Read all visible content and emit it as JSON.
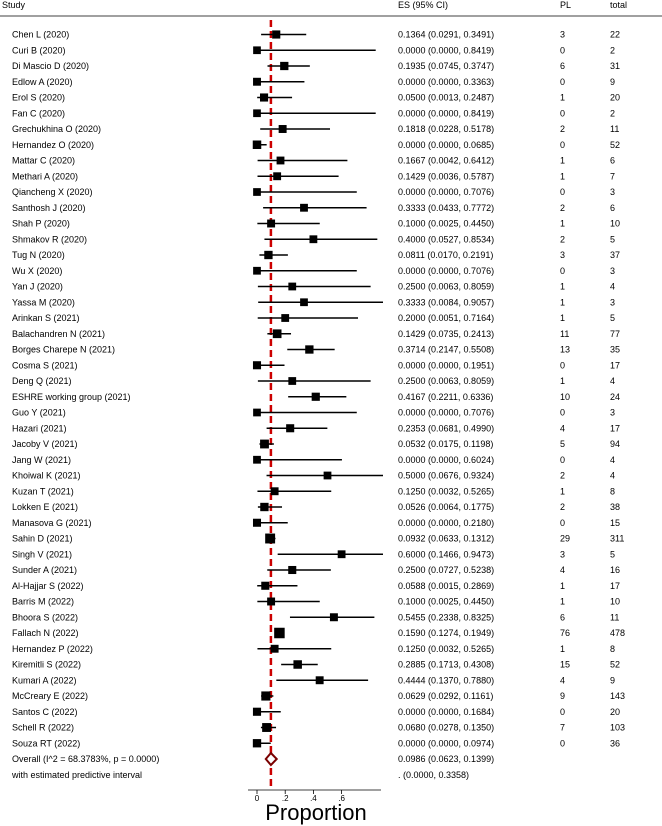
{
  "chart_data": {
    "type": "forest",
    "headers": {
      "study": "Study",
      "es": "ES (95% CI)",
      "pl": "PL",
      "total": "total"
    },
    "xlabel": "Proportion",
    "xlim": [
      -0.02,
      0.72
    ],
    "ticks": [
      "0",
      ".2",
      ".4",
      ".6"
    ],
    "tick_values": [
      0,
      0.2,
      0.4,
      0.6
    ],
    "reference_line": 0.0986,
    "colors": {
      "marker": "#000000",
      "line": "#000000",
      "reference": "#cc0000",
      "overall_diamond": "#7a0000"
    },
    "studies": [
      {
        "study": "Chen L (2020)",
        "es": 0.1364,
        "lo": 0.0291,
        "hi": 0.3491,
        "es_ci": "0.1364 (0.0291, 0.3491)",
        "pl": "3",
        "total": "22"
      },
      {
        "study": "Curi B (2020)",
        "es": 0.0,
        "lo": 0.0,
        "hi": 0.8419,
        "es_ci": "0.0000 (0.0000, 0.8419)",
        "pl": "0",
        "total": "2"
      },
      {
        "study": "Di Mascio D (2020)",
        "es": 0.1935,
        "lo": 0.0745,
        "hi": 0.3747,
        "es_ci": "0.1935 (0.0745, 0.3747)",
        "pl": "6",
        "total": "31"
      },
      {
        "study": "Edlow A (2020)",
        "es": 0.0,
        "lo": 0.0,
        "hi": 0.3363,
        "es_ci": "0.0000 (0.0000, 0.3363)",
        "pl": "0",
        "total": "9"
      },
      {
        "study": "Erol S (2020)",
        "es": 0.05,
        "lo": 0.0013,
        "hi": 0.2487,
        "es_ci": "0.0500 (0.0013, 0.2487)",
        "pl": "1",
        "total": "20"
      },
      {
        "study": "Fan C (2020)",
        "es": 0.0,
        "lo": 0.0,
        "hi": 0.8419,
        "es_ci": "0.0000 (0.0000, 0.8419)",
        "pl": "0",
        "total": "2"
      },
      {
        "study": "Grechukhina O (2020)",
        "es": 0.1818,
        "lo": 0.0228,
        "hi": 0.5178,
        "es_ci": "0.1818 (0.0228, 0.5178)",
        "pl": "2",
        "total": "11"
      },
      {
        "study": "Hernandez O (2020)",
        "es": 0.0,
        "lo": 0.0,
        "hi": 0.0685,
        "es_ci": "0.0000 (0.0000, 0.0685)",
        "pl": "0",
        "total": "52"
      },
      {
        "study": "Mattar C (2020)",
        "es": 0.1667,
        "lo": 0.0042,
        "hi": 0.6412,
        "es_ci": "0.1667 (0.0042, 0.6412)",
        "pl": "1",
        "total": "6"
      },
      {
        "study": "Methari A (2020)",
        "es": 0.1429,
        "lo": 0.0036,
        "hi": 0.5787,
        "es_ci": "0.1429 (0.0036, 0.5787)",
        "pl": "1",
        "total": "7"
      },
      {
        "study": "Qiancheng X (2020)",
        "es": 0.0,
        "lo": 0.0,
        "hi": 0.7076,
        "es_ci": "0.0000 (0.0000, 0.7076)",
        "pl": "0",
        "total": "3"
      },
      {
        "study": "Santhosh J (2020)",
        "es": 0.3333,
        "lo": 0.0433,
        "hi": 0.7772,
        "es_ci": "0.3333 (0.0433, 0.7772)",
        "pl": "2",
        "total": "6"
      },
      {
        "study": "Shah P (2020)",
        "es": 0.1,
        "lo": 0.0025,
        "hi": 0.445,
        "es_ci": "0.1000 (0.0025, 0.4450)",
        "pl": "1",
        "total": "10"
      },
      {
        "study": "Shmakov R (2020)",
        "es": 0.4,
        "lo": 0.0527,
        "hi": 0.8534,
        "es_ci": "0.4000 (0.0527, 0.8534)",
        "pl": "2",
        "total": "5"
      },
      {
        "study": "Tug N (2020)",
        "es": 0.0811,
        "lo": 0.017,
        "hi": 0.2191,
        "es_ci": "0.0811 (0.0170, 0.2191)",
        "pl": "3",
        "total": "37"
      },
      {
        "study": "Wu X (2020)",
        "es": 0.0,
        "lo": 0.0,
        "hi": 0.7076,
        "es_ci": "0.0000 (0.0000, 0.7076)",
        "pl": "0",
        "total": "3"
      },
      {
        "study": "Yan J (2020)",
        "es": 0.25,
        "lo": 0.0063,
        "hi": 0.8059,
        "es_ci": "0.2500 (0.0063, 0.8059)",
        "pl": "1",
        "total": "4"
      },
      {
        "study": "Yassa M (2020)",
        "es": 0.3333,
        "lo": 0.0084,
        "hi": 0.9057,
        "es_ci": "0.3333 (0.0084, 0.9057)",
        "pl": "1",
        "total": "3"
      },
      {
        "study": "Arinkan S (2021)",
        "es": 0.2,
        "lo": 0.0051,
        "hi": 0.7164,
        "es_ci": "0.2000 (0.0051, 0.7164)",
        "pl": "1",
        "total": "5"
      },
      {
        "study": "Balachandren N (2021)",
        "es": 0.1429,
        "lo": 0.0735,
        "hi": 0.2413,
        "es_ci": "0.1429 (0.0735, 0.2413)",
        "pl": "11",
        "total": "77"
      },
      {
        "study": "Borges Charepe N (2021)",
        "es": 0.3714,
        "lo": 0.2147,
        "hi": 0.5508,
        "es_ci": "0.3714 (0.2147, 0.5508)",
        "pl": "13",
        "total": "35"
      },
      {
        "study": "Cosma S (2021)",
        "es": 0.0,
        "lo": 0.0,
        "hi": 0.1951,
        "es_ci": "0.0000 (0.0000, 0.1951)",
        "pl": "0",
        "total": "17"
      },
      {
        "study": "Deng Q (2021)",
        "es": 0.25,
        "lo": 0.0063,
        "hi": 0.8059,
        "es_ci": "0.2500 (0.0063, 0.8059)",
        "pl": "1",
        "total": "4"
      },
      {
        "study": "ESHRE working group (2021)",
        "es": 0.4167,
        "lo": 0.2211,
        "hi": 0.6336,
        "es_ci": "0.4167 (0.2211, 0.6336)",
        "pl": "10",
        "total": "24"
      },
      {
        "study": "Guo Y (2021)",
        "es": 0.0,
        "lo": 0.0,
        "hi": 0.7076,
        "es_ci": "0.0000 (0.0000, 0.7076)",
        "pl": "0",
        "total": "3"
      },
      {
        "study": "Hazari  (2021)",
        "es": 0.2353,
        "lo": 0.0681,
        "hi": 0.499,
        "es_ci": "0.2353 (0.0681, 0.4990)",
        "pl": "4",
        "total": "17"
      },
      {
        "study": "Jacoby  V (2021)",
        "es": 0.0532,
        "lo": 0.0175,
        "hi": 0.1198,
        "es_ci": "0.0532 (0.0175, 0.1198)",
        "pl": "5",
        "total": "94"
      },
      {
        "study": "Jang W (2021)",
        "es": 0.0,
        "lo": 0.0,
        "hi": 0.6024,
        "es_ci": "0.0000 (0.0000, 0.6024)",
        "pl": "0",
        "total": "4"
      },
      {
        "study": "Khoiwal K (2021)",
        "es": 0.5,
        "lo": 0.0676,
        "hi": 0.9324,
        "es_ci": "0.5000 (0.0676, 0.9324)",
        "pl": "2",
        "total": "4"
      },
      {
        "study": "Kuzan T (2021)",
        "es": 0.125,
        "lo": 0.0032,
        "hi": 0.5265,
        "es_ci": "0.1250 (0.0032, 0.5265)",
        "pl": "1",
        "total": "8"
      },
      {
        "study": "Lokken E (2021)",
        "es": 0.0526,
        "lo": 0.0064,
        "hi": 0.1775,
        "es_ci": "0.0526 (0.0064, 0.1775)",
        "pl": "2",
        "total": "38"
      },
      {
        "study": "Manasova G (2021)",
        "es": 0.0,
        "lo": 0.0,
        "hi": 0.218,
        "es_ci": "0.0000 (0.0000, 0.2180)",
        "pl": "0",
        "total": "15"
      },
      {
        "study": "Sahin D (2021)",
        "es": 0.0932,
        "lo": 0.0633,
        "hi": 0.1312,
        "es_ci": "0.0932 (0.0633, 0.1312)",
        "pl": "29",
        "total": "311"
      },
      {
        "study": "Singh V (2021)",
        "es": 0.6,
        "lo": 0.1466,
        "hi": 0.9473,
        "es_ci": "0.6000 (0.1466, 0.9473)",
        "pl": "3",
        "total": "5"
      },
      {
        "study": "Sunder A (2021)",
        "es": 0.25,
        "lo": 0.0727,
        "hi": 0.5238,
        "es_ci": "0.2500 (0.0727, 0.5238)",
        "pl": "4",
        "total": "16"
      },
      {
        "study": "Al-Hajjar S (2022)",
        "es": 0.0588,
        "lo": 0.0015,
        "hi": 0.2869,
        "es_ci": "0.0588 (0.0015, 0.2869)",
        "pl": "1",
        "total": "17"
      },
      {
        "study": "Barris M (2022)",
        "es": 0.1,
        "lo": 0.0025,
        "hi": 0.445,
        "es_ci": "0.1000 (0.0025, 0.4450)",
        "pl": "1",
        "total": "10"
      },
      {
        "study": "Bhoora S (2022)",
        "es": 0.5455,
        "lo": 0.2338,
        "hi": 0.8325,
        "es_ci": "0.5455 (0.2338, 0.8325)",
        "pl": "6",
        "total": "11"
      },
      {
        "study": "Fallach N (2022)",
        "es": 0.159,
        "lo": 0.1274,
        "hi": 0.1949,
        "es_ci": "0.1590 (0.1274, 0.1949)",
        "pl": "76",
        "total": "478"
      },
      {
        "study": "Hernandez P (2022)",
        "es": 0.125,
        "lo": 0.0032,
        "hi": 0.5265,
        "es_ci": "0.1250 (0.0032, 0.5265)",
        "pl": "1",
        "total": "8"
      },
      {
        "study": "Kiremitli S (2022)",
        "es": 0.2885,
        "lo": 0.1713,
        "hi": 0.4308,
        "es_ci": "0.2885 (0.1713, 0.4308)",
        "pl": "15",
        "total": "52"
      },
      {
        "study": "Kumari A (2022)",
        "es": 0.4444,
        "lo": 0.137,
        "hi": 0.788,
        "es_ci": "0.4444 (0.1370, 0.7880)",
        "pl": "4",
        "total": "9"
      },
      {
        "study": "McCreary E (2022)",
        "es": 0.0629,
        "lo": 0.0292,
        "hi": 0.1161,
        "es_ci": "0.0629 (0.0292, 0.1161)",
        "pl": "9",
        "total": "143"
      },
      {
        "study": "Santos C (2022)",
        "es": 0.0,
        "lo": 0.0,
        "hi": 0.1684,
        "es_ci": "0.0000 (0.0000, 0.1684)",
        "pl": "0",
        "total": "20"
      },
      {
        "study": "Schell R (2022)",
        "es": 0.068,
        "lo": 0.0278,
        "hi": 0.135,
        "es_ci": "0.0680 (0.0278, 0.1350)",
        "pl": "7",
        "total": "103"
      },
      {
        "study": "Souza RT (2022)",
        "es": 0.0,
        "lo": 0.0,
        "hi": 0.0974,
        "es_ci": "0.0000 (0.0000, 0.0974)",
        "pl": "0",
        "total": "36"
      }
    ],
    "overall": {
      "label": "Overall  (I^2 = 68.3783%, p = 0.0000)",
      "es": 0.0986,
      "lo": 0.0623,
      "hi": 0.1399,
      "es_ci": "0.0986 (0.0623, 0.1399)"
    },
    "prediction": {
      "label": "with estimated predictive interval",
      "es_ci": ".      (0.0000, 0.3358)"
    }
  }
}
